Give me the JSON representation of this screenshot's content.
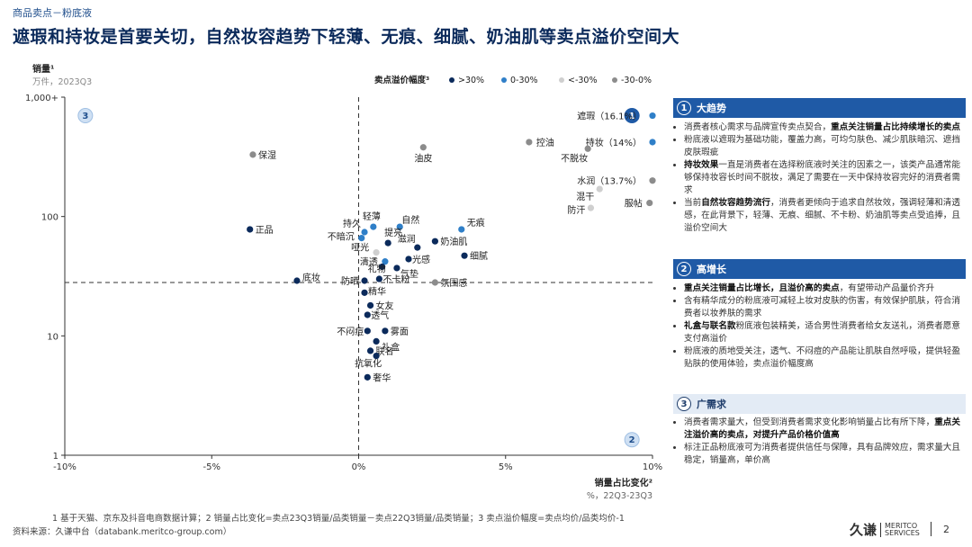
{
  "header": {
    "breadcrumb": "商品卖点－粉底液",
    "title": "遮瑕和持妆是首要关切，自然妆容趋势下轻薄、无痕、细腻、奶油肌等卖点溢价空间大"
  },
  "chart_data": {
    "type": "scatter",
    "y_scale": "log",
    "ylabel": "销量¹",
    "ylabel_unit": "万件，2023Q3",
    "xlabel": "销量占比变化²",
    "xlabel_unit": "%，22Q3-23Q3",
    "xlim": [
      -10,
      10
    ],
    "ylim": [
      1,
      1000
    ],
    "x_ticks": [
      -10,
      -5,
      0,
      5,
      10
    ],
    "x_tick_labels": [
      "-10%",
      "-5%",
      "0%",
      "5%",
      "10%"
    ],
    "y_ticks": [
      1,
      10,
      100,
      1000
    ],
    "y_tick_labels": [
      "1",
      "10",
      "100",
      "1,000+"
    ],
    "divider_x": 0,
    "divider_y": 28,
    "legend_title": "卖点溢价幅度³",
    "legend": [
      {
        "label": ">30%",
        "color": "#0b2a5b"
      },
      {
        "label": "0-30%",
        "color": "#2f7fc8"
      },
      {
        "label": "<-30%",
        "color": "#cfcfcf"
      },
      {
        "label": "-30-0%",
        "color": "#8c8c8c"
      }
    ],
    "quadrant_labels": [
      {
        "id": "1",
        "x": 9.3,
        "y": 700
      },
      {
        "id": "2",
        "x": 9.3,
        "y": 1.35
      },
      {
        "id": "3",
        "x": -9.3,
        "y": 700
      }
    ],
    "points": [
      {
        "label": "遮瑕（16.1%）",
        "x": 10.0,
        "y": 700,
        "group": "0-30%"
      },
      {
        "label": "持妆（14%）",
        "x": 10.0,
        "y": 420,
        "group": "0-30%"
      },
      {
        "label": "水润（13.7%）",
        "x": 10.0,
        "y": 200,
        "group": "-30-0%"
      },
      {
        "label": "控油",
        "x": 5.8,
        "y": 420,
        "group": "-30-0%"
      },
      {
        "label": "不脱妆",
        "x": 7.8,
        "y": 370,
        "group": "-30-0%"
      },
      {
        "label": "混干",
        "x": 8.2,
        "y": 170,
        "group": "<-30%"
      },
      {
        "label": "服帖",
        "x": 9.9,
        "y": 130,
        "group": "-30-0%"
      },
      {
        "label": "防汗",
        "x": 7.9,
        "y": 118,
        "group": "<-30%"
      },
      {
        "label": "油皮",
        "x": 2.2,
        "y": 380,
        "group": "-30-0%"
      },
      {
        "label": "保湿",
        "x": -3.6,
        "y": 330,
        "group": "-30-0%"
      },
      {
        "label": "正品",
        "x": -3.7,
        "y": 78,
        "group": ">30%"
      },
      {
        "label": "底妆",
        "x": -2.1,
        "y": 29,
        "group": ">30%"
      },
      {
        "label": "轻薄",
        "x": 0.5,
        "y": 82,
        "group": "0-30%"
      },
      {
        "label": "自然",
        "x": 1.4,
        "y": 82,
        "group": "0-30%"
      },
      {
        "label": "无痕",
        "x": 3.5,
        "y": 78,
        "group": "0-30%"
      },
      {
        "label": "持久",
        "x": 0.2,
        "y": 74,
        "group": "0-30%"
      },
      {
        "label": "提亮",
        "x": 1.0,
        "y": 60,
        "group": ">30%"
      },
      {
        "label": "奶油肌",
        "x": 2.6,
        "y": 62,
        "group": ">30%"
      },
      {
        "label": "滋润",
        "x": 2.0,
        "y": 55,
        "group": ">30%"
      },
      {
        "label": "细腻",
        "x": 3.6,
        "y": 47,
        "group": ">30%"
      },
      {
        "label": "不暗沉",
        "x": 0.1,
        "y": 66,
        "group": "0-30%"
      },
      {
        "label": "哑光",
        "x": 0.6,
        "y": 50,
        "group": "<-30%"
      },
      {
        "label": "光感",
        "x": 1.7,
        "y": 44,
        "group": ">30%"
      },
      {
        "label": "清透",
        "x": 0.9,
        "y": 42,
        "group": "0-30%"
      },
      {
        "label": "礼物",
        "x": 0.8,
        "y": 38,
        "group": ">30%"
      },
      {
        "label": "气垫",
        "x": 1.3,
        "y": 37,
        "group": ">30%"
      },
      {
        "label": "防晒",
        "x": 0.2,
        "y": 29,
        "group": ">30%"
      },
      {
        "label": "不卡粉",
        "x": 0.7,
        "y": 30,
        "group": ">30%"
      },
      {
        "label": "氛围感",
        "x": 2.6,
        "y": 28,
        "group": "-30-0%"
      },
      {
        "label": "精华",
        "x": 0.2,
        "y": 23,
        "group": ">30%"
      },
      {
        "label": "女友",
        "x": 0.4,
        "y": 18,
        "group": ">30%"
      },
      {
        "label": "透气",
        "x": 0.3,
        "y": 15,
        "group": ">30%"
      },
      {
        "label": "不闷痘",
        "x": 0.3,
        "y": 11,
        "group": ">30%"
      },
      {
        "label": "雾面",
        "x": 0.9,
        "y": 11,
        "group": ">30%"
      },
      {
        "label": "礼盒",
        "x": 0.6,
        "y": 9,
        "group": ">30%"
      },
      {
        "label": "联名",
        "x": 0.4,
        "y": 7.5,
        "group": ">30%"
      },
      {
        "label": "抗氧化",
        "x": 0.6,
        "y": 6.8,
        "group": ">30%"
      },
      {
        "label": "奢华",
        "x": 0.3,
        "y": 4.5,
        "group": ">30%"
      }
    ]
  },
  "panels": [
    {
      "num": "1",
      "title": "大趋势",
      "items": [
        {
          "pre": "消费者核心需求与品牌宣传卖点契合，",
          "bold": "重点关注销量占比持续增长的卖点",
          "post": ""
        },
        {
          "pre": "粉底液以遮瑕为基础功能，覆盖力高，可均匀肤色、减少肌肤暗沉、遮挡皮肤瑕疵",
          "bold": "",
          "post": ""
        },
        {
          "pre": "",
          "bold": "持妆效果",
          "post": "一直是消费者在选择粉底液时关注的因素之一，该类产品通常能够保持妆容长时间不脱妆，满足了需要在一天中保持妆容完好的消费者需求"
        },
        {
          "pre": "当前",
          "bold": "自然妆容趋势流行",
          "post": "，消费者更倾向于追求自然妆效，强调轻薄和清透感，在此背景下，轻薄、无痕、细腻、不卡粉、奶油肌等卖点受追捧，且溢价空间大"
        }
      ]
    },
    {
      "num": "2",
      "title": "高增长",
      "items": [
        {
          "pre": "",
          "bold": "重点关注销量占比增长，且溢价高的卖点",
          "post": "，有望带动产品量价齐升"
        },
        {
          "pre": "含有精华成分的粉底液可减轻上妆对皮肤的伤害，有效保护肌肤，符合消费者以妆养肤的需求",
          "bold": "",
          "post": ""
        },
        {
          "pre": "",
          "bold": "礼盒与联名款",
          "post": "粉底液包装精美，适合男性消费者给女友送礼，消费者愿意支付高溢价"
        },
        {
          "pre": "粉底液的质地受关注，透气、不闷痘的产品能让肌肤自然呼吸，提供轻盈贴肤的使用体验，卖点溢价幅度高",
          "bold": "",
          "post": ""
        }
      ]
    },
    {
      "num": "3",
      "title": "广需求",
      "items": [
        {
          "pre": "消费者需求量大，但受到消费者需求变化影响销量占比有所下降，",
          "bold": "重点关注溢价高的卖点，对提升产品价格价值高",
          "post": ""
        },
        {
          "pre": "标注正品粉底液可为消费者提供信任与保障，具有品牌效应，需求量大且稳定，销量高，单价高",
          "bold": "",
          "post": ""
        }
      ]
    }
  ],
  "footer": {
    "footnote": "1  基于天猫、京东及抖音电商数据计算；2  销量占比变化=卖点23Q3销量/品类销量－卖点22Q3销量/品类销量；3  卖点溢价幅度=卖点均价/品类均价-1",
    "source": "资料来源：久谦中台（databank.meritco-group.com）",
    "logo_cn": "久谦",
    "logo_en_1": "MERITCO",
    "logo_en_2": "SERVICES",
    "page_number": "2"
  }
}
